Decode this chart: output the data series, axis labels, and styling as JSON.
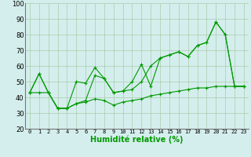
{
  "x": [
    0,
    1,
    2,
    3,
    4,
    5,
    6,
    7,
    8,
    9,
    10,
    11,
    12,
    13,
    14,
    15,
    16,
    17,
    18,
    19,
    20,
    21,
    22,
    23
  ],
  "line_top": [
    43,
    55,
    43,
    33,
    33,
    50,
    49,
    59,
    52,
    43,
    44,
    50,
    61,
    47,
    65,
    67,
    69,
    66,
    73,
    75,
    88,
    80,
    47,
    47
  ],
  "line_mid": [
    43,
    55,
    43,
    33,
    33,
    36,
    38,
    54,
    52,
    43,
    44,
    45,
    50,
    60,
    65,
    67,
    69,
    66,
    73,
    75,
    88,
    80,
    47,
    47
  ],
  "line_bot": [
    43,
    43,
    43,
    33,
    33,
    36,
    37,
    39,
    38,
    35,
    37,
    38,
    39,
    41,
    42,
    43,
    44,
    45,
    46,
    46,
    47,
    47,
    47,
    47
  ],
  "line_color": "#009900",
  "bg_color": "#d4eeed",
  "grid_color": "#aaccaa",
  "xlabel": "Humidité relative (%)",
  "ylim": [
    20,
    100
  ],
  "xlim": [
    -0.5,
    23.5
  ],
  "yticks": [
    20,
    30,
    40,
    50,
    60,
    70,
    80,
    90,
    100
  ],
  "xticks": [
    0,
    1,
    2,
    3,
    4,
    5,
    6,
    7,
    8,
    9,
    10,
    11,
    12,
    13,
    14,
    15,
    16,
    17,
    18,
    19,
    20,
    21,
    22,
    23
  ],
  "xlabel_fontsize": 7,
  "tick_fontsize": 5,
  "ytick_fontsize": 6
}
